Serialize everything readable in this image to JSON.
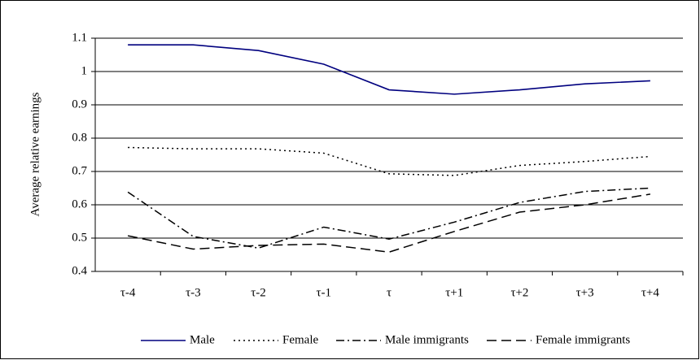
{
  "chart_data": {
    "type": "line",
    "y_label": "Average relative earnings",
    "categories": [
      "τ-4",
      "τ-3",
      "τ-2",
      "τ-1",
      "τ",
      "τ+1",
      "τ+2",
      "τ+3",
      "τ+4"
    ],
    "series": [
      {
        "name": "Male",
        "color": "#00007f",
        "dash": "solid",
        "values": [
          1.08,
          1.08,
          1.063,
          1.022,
          0.945,
          0.932,
          0.945,
          0.963,
          0.972
        ]
      },
      {
        "name": "Female",
        "color": "#000000",
        "dash": "dotted",
        "values": [
          0.772,
          0.768,
          0.768,
          0.755,
          0.693,
          0.688,
          0.718,
          0.73,
          0.745
        ]
      },
      {
        "name": "Male immigrants",
        "color": "#000000",
        "dash": "dashdot",
        "values": [
          0.638,
          0.505,
          0.47,
          0.533,
          0.497,
          0.548,
          0.607,
          0.64,
          0.65
        ]
      },
      {
        "name": "Female immigrants",
        "color": "#000000",
        "dash": "dashed",
        "values": [
          0.507,
          0.467,
          0.478,
          0.482,
          0.458,
          0.52,
          0.578,
          0.6,
          0.632
        ]
      }
    ],
    "ylim": [
      0.4,
      1.1
    ],
    "yticks": [
      0.4,
      0.5,
      0.6,
      0.7,
      0.8,
      0.9,
      1,
      1.1
    ],
    "grid": true,
    "legend": "bottom"
  }
}
